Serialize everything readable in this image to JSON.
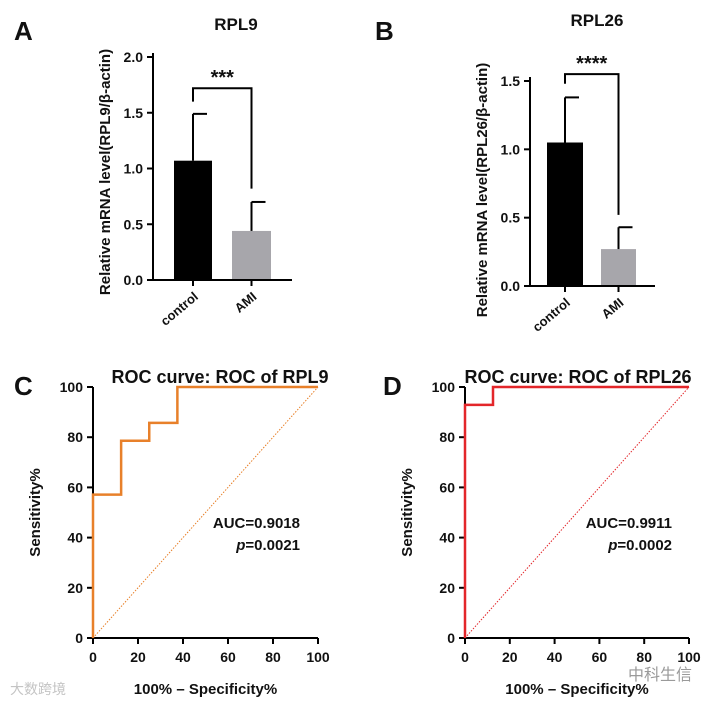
{
  "chart_data": [
    {
      "panel": "A",
      "type": "bar",
      "title": "RPL9",
      "ylabel": "Relative mRNA level(RPL9/β-actin)",
      "xlabel": "",
      "categories": [
        "control",
        "AMI"
      ],
      "values": [
        1.07,
        0.44
      ],
      "error_upper": [
        1.49,
        0.7
      ],
      "colors": [
        "#000000",
        "#a7a6ab"
      ],
      "ylim": [
        0,
        2.0
      ],
      "yticks": [
        "0.0",
        "0.5",
        "1.0",
        "1.5",
        "2.0"
      ],
      "significance": "***",
      "bracket_value": 1.72,
      "bracket_drops": [
        1.6,
        0.82
      ]
    },
    {
      "panel": "B",
      "type": "bar",
      "title": "RPL26",
      "ylabel": "Relative mRNA level(RPL26/β-actin)",
      "xlabel": "",
      "categories": [
        "control",
        "AMI"
      ],
      "values": [
        1.05,
        0.27
      ],
      "error_upper": [
        1.38,
        0.43
      ],
      "colors": [
        "#000000",
        "#a7a6ab"
      ],
      "ylim": [
        0,
        1.5
      ],
      "yticks": [
        "0.0",
        "0.5",
        "1.0",
        "1.5"
      ],
      "significance": "****",
      "bracket_value": 1.55,
      "bracket_drops": [
        1.48,
        0.52
      ]
    },
    {
      "panel": "C",
      "type": "line",
      "title": "ROC curve: ROC of RPL9",
      "xlabel": "100% – Specificity%",
      "ylabel": "Sensitivity%",
      "xlim": [
        0,
        100
      ],
      "ylim": [
        0,
        100
      ],
      "xticks": [
        "0",
        "20",
        "40",
        "60",
        "80",
        "100"
      ],
      "yticks": [
        "0",
        "20",
        "40",
        "60",
        "80",
        "100"
      ],
      "color": "#e8802a",
      "x": [
        0,
        0,
        12.5,
        12.5,
        25,
        25,
        37.5,
        37.5,
        100
      ],
      "y": [
        0,
        57.1,
        57.1,
        78.6,
        78.6,
        85.7,
        85.7,
        100,
        100
      ],
      "auc_label": "AUC=0.9018",
      "p_label": "p",
      "p_value": "=0.0021"
    },
    {
      "panel": "D",
      "type": "line",
      "title": "ROC curve: ROC of RPL26",
      "xlabel": "100% – Specificity%",
      "ylabel": "Sensitivity%",
      "xlim": [
        0,
        100
      ],
      "ylim": [
        0,
        100
      ],
      "xticks": [
        "0",
        "20",
        "40",
        "60",
        "80",
        "100"
      ],
      "yticks": [
        "0",
        "20",
        "40",
        "60",
        "80",
        "100"
      ],
      "color": "#e3262a",
      "x": [
        0,
        0,
        12.5,
        12.5,
        100
      ],
      "y": [
        0,
        92.9,
        92.9,
        100,
        100
      ],
      "auc_label": "AUC=0.9911",
      "p_label": "p",
      "p_value": "=0.0002"
    }
  ],
  "watermarks": [
    "大数跨境",
    "中科生信"
  ]
}
